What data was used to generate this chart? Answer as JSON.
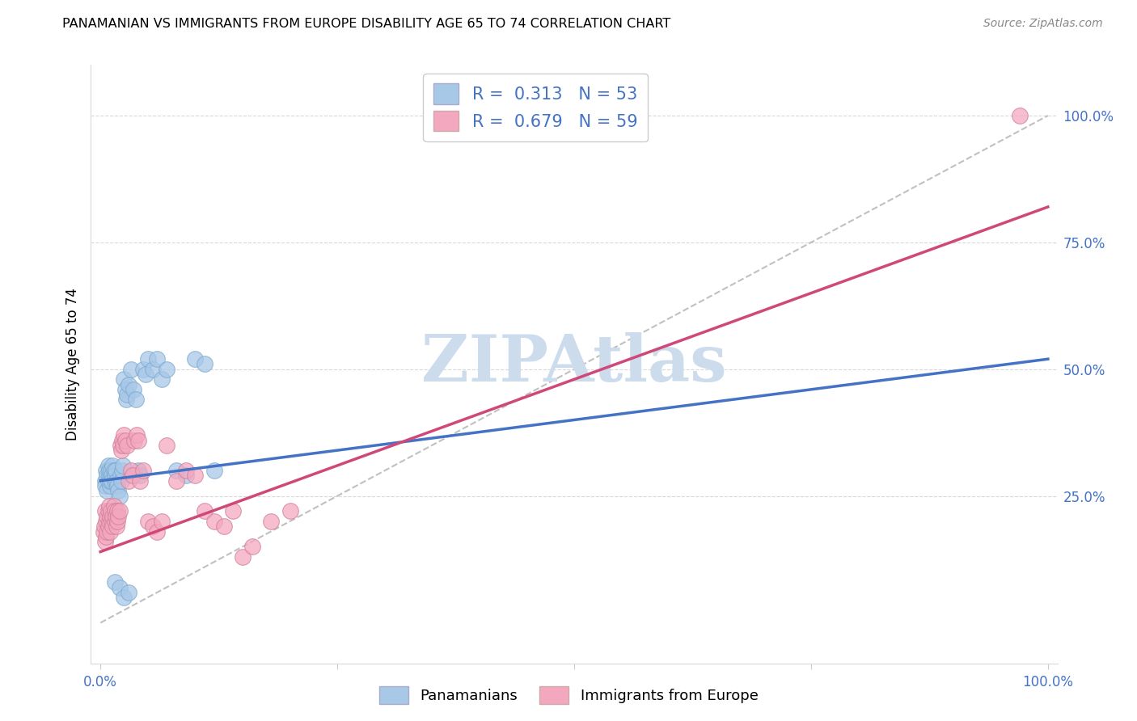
{
  "title": "PANAMANIAN VS IMMIGRANTS FROM EUROPE DISABILITY AGE 65 TO 74 CORRELATION CHART",
  "source": "Source: ZipAtlas.com",
  "ylabel": "Disability Age 65 to 74",
  "blue_R": "0.313",
  "blue_N": "53",
  "pink_R": "0.679",
  "pink_N": "59",
  "blue_color": "#a8c8e8",
  "pink_color": "#f4a8c0",
  "blue_line_color": "#4472c4",
  "pink_line_color": "#d04878",
  "dash_color": "#c0c0c0",
  "watermark": "ZIPAtlas",
  "watermark_color": "#ccdcec",
  "blue_points_x": [
    0.005,
    0.005,
    0.006,
    0.007,
    0.007,
    0.008,
    0.008,
    0.009,
    0.009,
    0.01,
    0.01,
    0.011,
    0.012,
    0.012,
    0.013,
    0.014,
    0.015,
    0.015,
    0.016,
    0.017,
    0.018,
    0.019,
    0.02,
    0.021,
    0.022,
    0.023,
    0.024,
    0.025,
    0.026,
    0.027,
    0.028,
    0.03,
    0.032,
    0.035,
    0.037,
    0.04,
    0.042,
    0.045,
    0.048,
    0.05,
    0.055,
    0.06,
    0.065,
    0.07,
    0.08,
    0.09,
    0.1,
    0.11,
    0.12,
    0.015,
    0.02,
    0.025,
    0.03
  ],
  "blue_points_y": [
    0.28,
    0.27,
    0.3,
    0.29,
    0.26,
    0.28,
    0.31,
    0.29,
    0.3,
    0.27,
    0.28,
    0.3,
    0.29,
    0.28,
    0.31,
    0.3,
    0.28,
    0.29,
    0.3,
    0.28,
    0.27,
    0.26,
    0.25,
    0.29,
    0.28,
    0.3,
    0.31,
    0.48,
    0.46,
    0.44,
    0.45,
    0.47,
    0.5,
    0.46,
    0.44,
    0.3,
    0.29,
    0.5,
    0.49,
    0.52,
    0.5,
    0.52,
    0.48,
    0.5,
    0.3,
    0.29,
    0.52,
    0.51,
    0.3,
    0.08,
    0.07,
    0.05,
    0.06
  ],
  "pink_points_x": [
    0.003,
    0.004,
    0.005,
    0.005,
    0.006,
    0.006,
    0.007,
    0.007,
    0.008,
    0.008,
    0.009,
    0.009,
    0.01,
    0.01,
    0.011,
    0.012,
    0.013,
    0.013,
    0.014,
    0.015,
    0.015,
    0.016,
    0.017,
    0.018,
    0.018,
    0.019,
    0.02,
    0.021,
    0.022,
    0.023,
    0.024,
    0.025,
    0.026,
    0.028,
    0.03,
    0.032,
    0.034,
    0.036,
    0.038,
    0.04,
    0.042,
    0.045,
    0.05,
    0.055,
    0.06,
    0.065,
    0.07,
    0.08,
    0.09,
    0.1,
    0.11,
    0.12,
    0.13,
    0.14,
    0.15,
    0.16,
    0.18,
    0.2,
    0.97
  ],
  "pink_points_y": [
    0.18,
    0.19,
    0.16,
    0.22,
    0.2,
    0.17,
    0.21,
    0.18,
    0.22,
    0.19,
    0.2,
    0.23,
    0.21,
    0.18,
    0.22,
    0.2,
    0.21,
    0.19,
    0.23,
    0.22,
    0.2,
    0.21,
    0.19,
    0.22,
    0.2,
    0.21,
    0.22,
    0.35,
    0.34,
    0.36,
    0.35,
    0.37,
    0.36,
    0.35,
    0.28,
    0.3,
    0.29,
    0.36,
    0.37,
    0.36,
    0.28,
    0.3,
    0.2,
    0.19,
    0.18,
    0.2,
    0.35,
    0.28,
    0.3,
    0.29,
    0.22,
    0.2,
    0.19,
    0.22,
    0.13,
    0.15,
    0.2,
    0.22,
    1.0
  ],
  "xlim": [
    -0.01,
    1.01
  ],
  "ylim": [
    -0.08,
    1.1
  ],
  "x_ticks": [
    0.0,
    0.25,
    0.5,
    0.75,
    1.0
  ],
  "y_ticks_right": [
    0.25,
    0.5,
    0.75,
    1.0
  ],
  "y_tick_labels": [
    "25.0%",
    "50.0%",
    "75.0%",
    "100.0%"
  ],
  "x_tick_labels_show": [
    "0.0%",
    "100.0%"
  ],
  "blue_line_x": [
    0.0,
    1.0
  ],
  "blue_line_y_intercept": 0.28,
  "blue_line_slope": 0.24,
  "pink_line_x": [
    0.0,
    1.0
  ],
  "pink_line_y_intercept": 0.14,
  "pink_line_slope": 0.68
}
